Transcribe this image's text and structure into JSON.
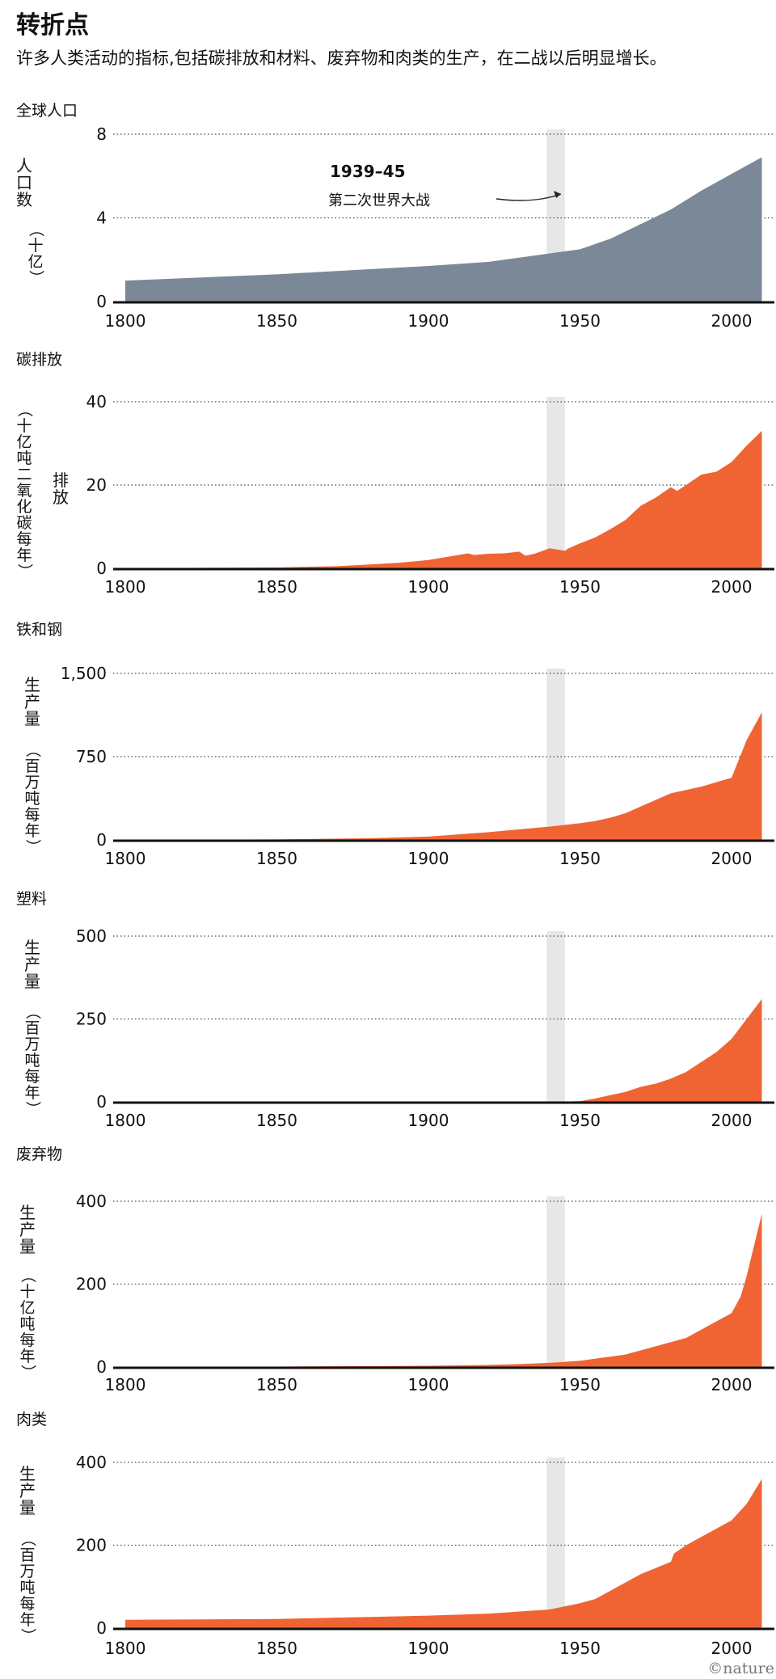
{
  "figure": {
    "title": "转折点",
    "subtitle": "许多人类活动的指标,包括碳排放和材料、废弃物和肉类的生产，在二战以后明显增长。",
    "credit": "©nature",
    "highlight": {
      "x_range": [
        1939,
        1945
      ],
      "color": "#e6e7e6"
    },
    "annotation": {
      "year_label": "1939–45",
      "text": "第二次世界大战"
    },
    "colors": {
      "population": "#7b8898",
      "other": "#f06433",
      "axis": "#111111",
      "grid": "#444444"
    }
  },
  "chart_data": [
    {
      "type": "area",
      "title": "全球人口",
      "ylabel_main": "人口数",
      "ylabel_unit": "（十亿）",
      "xlim": [
        1796,
        2012
      ],
      "ylim": [
        0,
        8
      ],
      "x_ticks": [
        "1800",
        "1850",
        "1900",
        "1950",
        "2000"
      ],
      "y_ticks": [
        {
          "value": 0,
          "label": "0"
        },
        {
          "value": 4,
          "label": "4"
        },
        {
          "value": 8,
          "label": "8"
        }
      ],
      "series": [
        {
          "color": "#7b8898",
          "x": [
            1800,
            1850,
            1900,
            1920,
            1940,
            1950,
            1960,
            1970,
            1980,
            1990,
            2000,
            2010
          ],
          "y": [
            1.0,
            1.3,
            1.7,
            1.9,
            2.3,
            2.5,
            3.0,
            3.7,
            4.4,
            5.3,
            6.1,
            6.9
          ]
        }
      ]
    },
    {
      "type": "area",
      "title": "碳排放",
      "ylabel_main": "排放",
      "ylabel_unit": "（十亿吨二氧化碳每年）",
      "xlim": [
        1796,
        2012
      ],
      "ylim": [
        0,
        40
      ],
      "x_ticks": [
        "1800",
        "1850",
        "1900",
        "1950",
        "2000"
      ],
      "y_ticks": [
        {
          "value": 0,
          "label": "0"
        },
        {
          "value": 20,
          "label": "20"
        },
        {
          "value": 40,
          "label": "40"
        }
      ],
      "series": [
        {
          "color": "#f06433",
          "x": [
            1800,
            1850,
            1870,
            1880,
            1890,
            1900,
            1905,
            1910,
            1913,
            1915,
            1920,
            1925,
            1930,
            1932,
            1935,
            1940,
            1945,
            1946,
            1950,
            1955,
            1960,
            1965,
            1970,
            1975,
            1980,
            1982,
            1985,
            1990,
            1995,
            2000,
            2005,
            2010
          ],
          "y": [
            0.03,
            0.2,
            0.5,
            0.9,
            1.3,
            2.0,
            2.6,
            3.2,
            3.6,
            3.2,
            3.5,
            3.6,
            4.0,
            3.0,
            3.5,
            4.8,
            4.2,
            4.7,
            6.0,
            7.4,
            9.4,
            11.6,
            15.0,
            17.0,
            19.5,
            18.6,
            20.0,
            22.5,
            23.2,
            25.5,
            29.5,
            33.0
          ]
        }
      ]
    },
    {
      "type": "area",
      "title": "铁和钢",
      "ylabel_main": "生产量",
      "ylabel_unit": "（百万吨每年）",
      "xlim": [
        1796,
        2012
      ],
      "ylim": [
        0,
        1500
      ],
      "x_ticks": [
        "1800",
        "1850",
        "1900",
        "1950",
        "2000"
      ],
      "y_ticks": [
        {
          "value": 0,
          "label": "0"
        },
        {
          "value": 750,
          "label": "750"
        },
        {
          "value": 1500,
          "label": "1,500"
        }
      ],
      "series": [
        {
          "color": "#f06433",
          "x": [
            1800,
            1850,
            1880,
            1900,
            1920,
            1940,
            1950,
            1955,
            1960,
            1965,
            1970,
            1975,
            1980,
            1990,
            2000,
            2005,
            2010
          ],
          "y": [
            1,
            5,
            15,
            30,
            70,
            120,
            150,
            170,
            200,
            240,
            300,
            360,
            420,
            480,
            560,
            900,
            1150
          ]
        }
      ]
    },
    {
      "type": "area",
      "title": "塑料",
      "ylabel_main": "生产量",
      "ylabel_unit": "（百万吨每年）",
      "xlim": [
        1796,
        2012
      ],
      "ylim": [
        0,
        500
      ],
      "x_ticks": [
        "1800",
        "1850",
        "1900",
        "1950",
        "2000"
      ],
      "y_ticks": [
        {
          "value": 0,
          "label": "0"
        },
        {
          "value": 250,
          "label": "250"
        },
        {
          "value": 500,
          "label": "500"
        }
      ],
      "series": [
        {
          "color": "#f06433",
          "x": [
            1800,
            1940,
            1945,
            1950,
            1955,
            1960,
            1965,
            1970,
            1975,
            1980,
            1985,
            1990,
            1995,
            2000,
            2005,
            2010
          ],
          "y": [
            0,
            0,
            1,
            2,
            10,
            20,
            30,
            45,
            55,
            70,
            90,
            120,
            150,
            190,
            250,
            310
          ]
        }
      ]
    },
    {
      "type": "area",
      "title": "废弃物",
      "ylabel_main": "生产量",
      "ylabel_unit": "（十亿吨每年）",
      "xlim": [
        1796,
        2012
      ],
      "ylim": [
        0,
        400
      ],
      "x_ticks": [
        "1800",
        "1850",
        "1900",
        "1950",
        "2000"
      ],
      "y_ticks": [
        {
          "value": 0,
          "label": "0"
        },
        {
          "value": 200,
          "label": "200"
        },
        {
          "value": 400,
          "label": "400"
        }
      ],
      "series": [
        {
          "color": "#f06433",
          "x": [
            1800,
            1850,
            1900,
            1920,
            1930,
            1940,
            1950,
            1955,
            1960,
            1965,
            1970,
            1975,
            1980,
            1985,
            1990,
            1995,
            2000,
            2003,
            2005,
            2010
          ],
          "y": [
            0,
            1,
            3,
            5,
            7,
            10,
            15,
            20,
            25,
            30,
            40,
            50,
            60,
            70,
            90,
            110,
            130,
            170,
            220,
            370
          ]
        }
      ]
    },
    {
      "type": "area",
      "title": "肉类",
      "ylabel_main": "生产量",
      "ylabel_unit": "（百万吨每年）",
      "xlim": [
        1796,
        2012
      ],
      "ylim": [
        0,
        400
      ],
      "x_ticks": [
        "1800",
        "1850",
        "1900",
        "1950",
        "2000"
      ],
      "y_ticks": [
        {
          "value": 0,
          "label": "0"
        },
        {
          "value": 200,
          "label": "200"
        },
        {
          "value": 400,
          "label": "400"
        }
      ],
      "series": [
        {
          "color": "#f06433",
          "x": [
            1800,
            1850,
            1900,
            1920,
            1940,
            1950,
            1955,
            1960,
            1965,
            1970,
            1975,
            1980,
            1981,
            1985,
            1990,
            1995,
            2000,
            2005,
            2010
          ],
          "y": [
            20,
            22,
            30,
            35,
            45,
            60,
            70,
            90,
            110,
            130,
            145,
            160,
            180,
            200,
            220,
            240,
            260,
            300,
            360
          ]
        }
      ]
    }
  ]
}
